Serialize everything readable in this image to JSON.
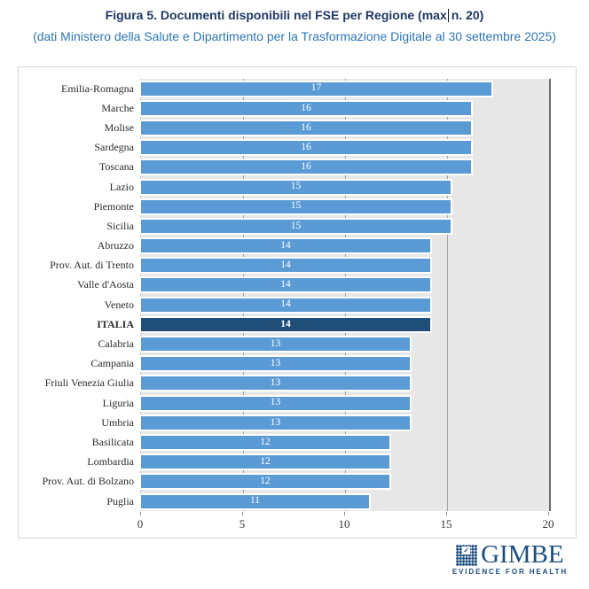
{
  "title": {
    "left": "Figura 5. Documenti disponibili nel FSE per Regione (max",
    "right": "n. 20)"
  },
  "subtitle": "(dati Ministero della Salute e Dipartimento per la Trasformazione Digitale al 30 settembre 2025)",
  "chart_data": {
    "type": "bar",
    "orientation": "horizontal",
    "title": "Figura 5. Documenti disponibili nel FSE per Regione (max n. 20)",
    "subtitle": "(dati Ministero della Salute e Dipartimento per la Trasformazione Digitale al 30 settembre 2025)",
    "categories": [
      "Emilia-Romagna",
      "Marche",
      "Molise",
      "Sardegna",
      "Toscana",
      "Lazio",
      "Piemonte",
      "Sicilia",
      "Abruzzo",
      "Prov. Aut. di Trento",
      "Valle d'Aosta",
      "Veneto",
      "ITALIA",
      "Calabria",
      "Campania",
      "Friuli Venezia Giulia",
      "Liguria",
      "Umbria",
      "Basilicata",
      "Lombardia",
      "Prov. Aut. di Bolzano",
      "Puglia"
    ],
    "values": [
      17,
      16,
      16,
      16,
      16,
      15,
      15,
      15,
      14,
      14,
      14,
      14,
      14,
      13,
      13,
      13,
      13,
      13,
      12,
      12,
      12,
      11
    ],
    "highlight_category": "ITALIA",
    "xlim": [
      0,
      20
    ],
    "x_ticks": [
      0,
      5,
      10,
      15,
      20
    ],
    "grid": true,
    "legend": "none",
    "value_labels": "inside-center"
  },
  "colors": {
    "title": "#1F3864",
    "subtitle": "#2E75B6",
    "bar": "#5B9BD5",
    "highlight_bar": "#1F4E79",
    "plot_background": "#E7E7E7",
    "gridline": "#A3A3A3",
    "value_label": "#FFFFFF",
    "logo": "#1C4E80"
  },
  "footer": {
    "logo_text": "GIMBE",
    "logo_tagline": "EVIDENCE FOR HEALTH"
  }
}
